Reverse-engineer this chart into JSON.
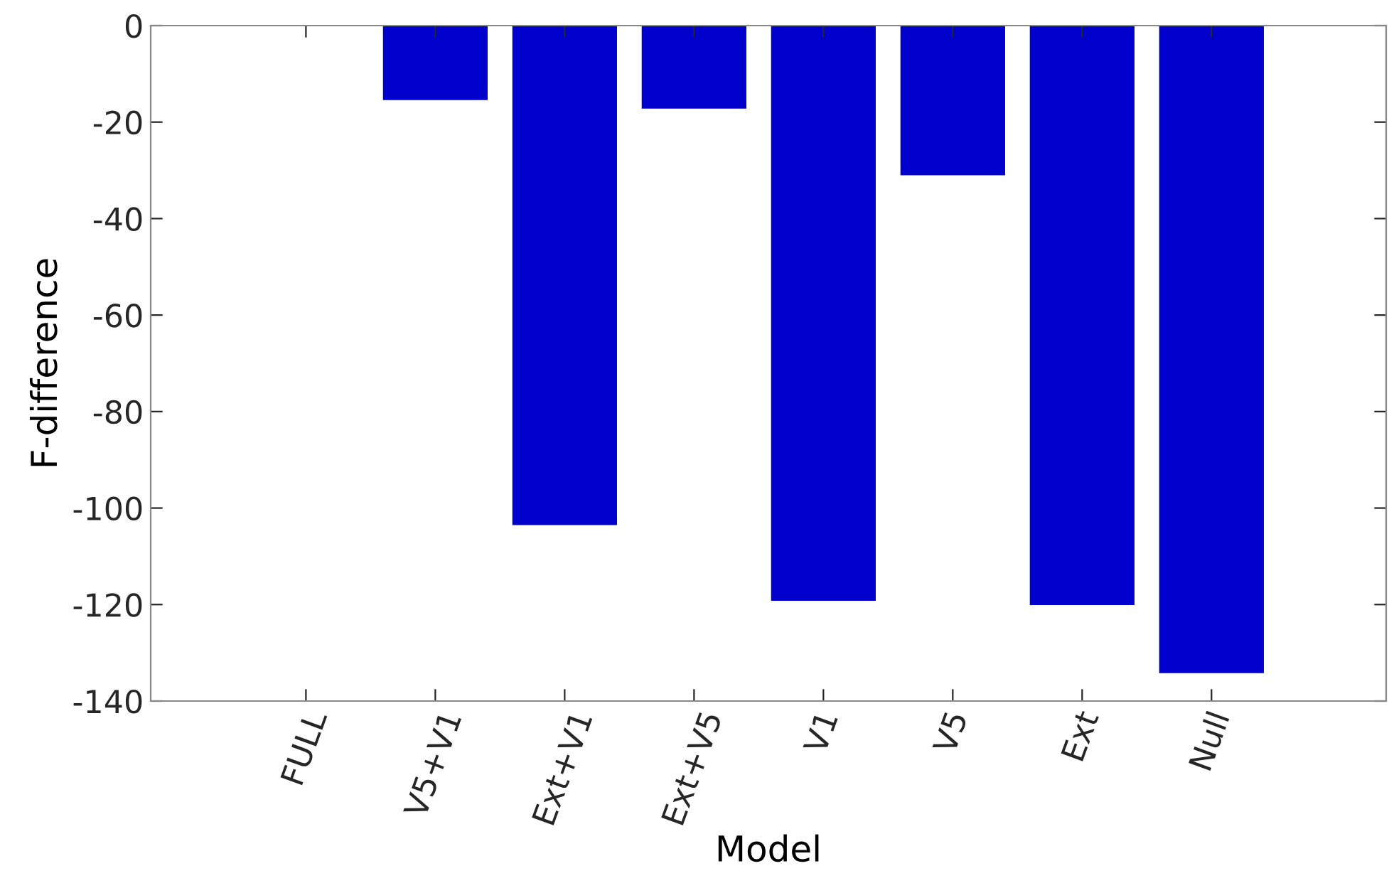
{
  "chart_data": {
    "type": "bar",
    "xlabel": "Model",
    "ylabel": "F-difference",
    "categories": [
      "FULL",
      "V5+V1",
      "Ext+V1",
      "Ext+V5",
      "V1",
      "V5",
      "Ext",
      "Null"
    ],
    "values": [
      0,
      -15.3,
      -103.4,
      -17.1,
      -119.1,
      -30.9,
      -120,
      -134.1
    ],
    "color": "#0000cc",
    "ylim": [
      -140,
      0
    ],
    "yticks": [
      -140,
      -120,
      -100,
      -80,
      -60,
      -40,
      -20,
      0
    ],
    "grid": false
  }
}
